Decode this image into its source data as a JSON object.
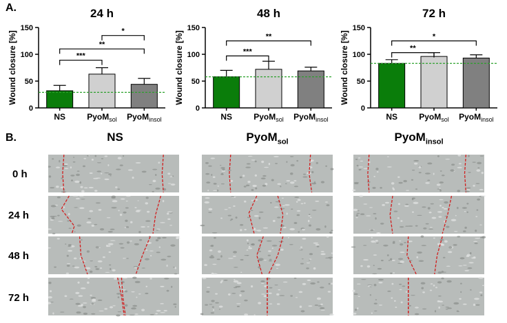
{
  "panel_a_label": "A.",
  "panel_b_label": "B.",
  "chart_data": [
    {
      "type": "bar",
      "title": "24 h",
      "ylabel": "Wound closure [%]",
      "ylim": [
        0,
        150
      ],
      "yticks": [
        0,
        50,
        100,
        150
      ],
      "categories": [
        {
          "main": "NS",
          "sub": ""
        },
        {
          "main": "PyoM",
          "sub": "sol"
        },
        {
          "main": "PyoM",
          "sub": "insol"
        }
      ],
      "values": [
        32,
        63,
        44
      ],
      "errors": [
        10,
        12,
        11
      ],
      "colors": [
        "#0a7d0a",
        "#d0d0d0",
        "#808080"
      ],
      "reference_line": 29,
      "significance": [
        {
          "from": 0,
          "to": 1,
          "label": "***",
          "y": 89
        },
        {
          "from": 0,
          "to": 2,
          "label": "**",
          "y": 110
        },
        {
          "from": 1,
          "to": 2,
          "label": "*",
          "y": 135
        }
      ]
    },
    {
      "type": "bar",
      "title": "48 h",
      "ylabel": "Wound closure [%]",
      "ylim": [
        0,
        150
      ],
      "yticks": [
        0,
        50,
        100,
        150
      ],
      "categories": [
        {
          "main": "NS",
          "sub": ""
        },
        {
          "main": "PyoM",
          "sub": "sol"
        },
        {
          "main": "PyoM",
          "sub": "insol"
        }
      ],
      "values": [
        58,
        72,
        69
      ],
      "errors": [
        12,
        15,
        7
      ],
      "colors": [
        "#0a7d0a",
        "#d0d0d0",
        "#808080"
      ],
      "reference_line": 58,
      "significance": [
        {
          "from": 0,
          "to": 1,
          "label": "***",
          "y": 97
        },
        {
          "from": 0,
          "to": 2,
          "label": "**",
          "y": 125
        }
      ]
    },
    {
      "type": "bar",
      "title": "72 h",
      "ylabel": "Wound closure [%]",
      "ylim": [
        0,
        150
      ],
      "yticks": [
        0,
        50,
        100,
        150
      ],
      "categories": [
        {
          "main": "NS",
          "sub": ""
        },
        {
          "main": "PyoM",
          "sub": "sol"
        },
        {
          "main": "PyoM",
          "sub": "insol"
        }
      ],
      "values": [
        83,
        96,
        93
      ],
      "errors": [
        7,
        7,
        6
      ],
      "colors": [
        "#0a7d0a",
        "#d0d0d0",
        "#808080"
      ],
      "reference_line": 83,
      "significance": [
        {
          "from": 0,
          "to": 1,
          "label": "**",
          "y": 103
        },
        {
          "from": 0,
          "to": 2,
          "label": "*",
          "y": 125
        }
      ]
    }
  ],
  "micrographs": {
    "columns": [
      {
        "main": "NS",
        "sub": ""
      },
      {
        "main": "PyoM",
        "sub": "sol"
      },
      {
        "main": "PyoM",
        "sub": "insol"
      }
    ],
    "rows": [
      "0 h",
      "24 h",
      "48 h",
      "72 h"
    ],
    "image_color": "#b8bcba",
    "wound_edge_color": "#d11f1f"
  }
}
